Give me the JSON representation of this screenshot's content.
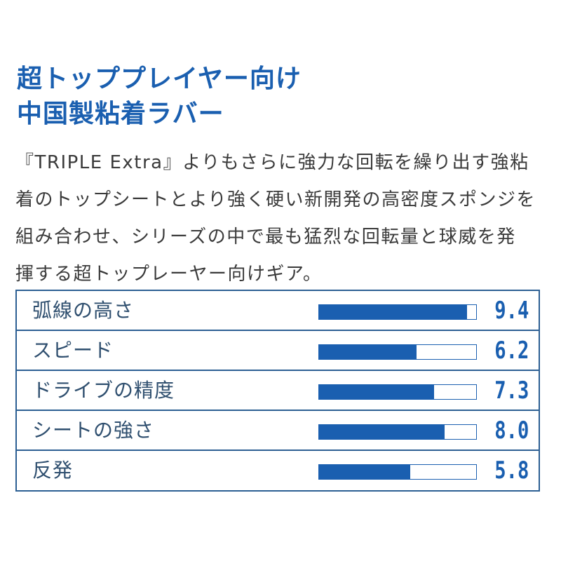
{
  "heading": {
    "line1": "超トッププレイヤー向け",
    "line2": "中国製粘着ラバー"
  },
  "description": {
    "lines": [
      "『TRIPLE Extra』よりもさらに強力な回転を繰り出す強粘",
      "着のトップシートとより強く硬い新開発の高密度スポンジを",
      "組み合わせ、シリーズの中で最も猛烈な回転量と球威を発",
      "揮する超トップレーヤー向けギア。"
    ]
  },
  "colors": {
    "accent": "#1a5fb0",
    "border": "#2c5f93",
    "text": "#3a3a3a"
  },
  "chart_data": {
    "type": "bar",
    "orientation": "horizontal",
    "categories": [
      "弧線の高さ",
      "スピード",
      "ドライブの精度",
      "シートの強さ",
      "反発"
    ],
    "values": [
      9.4,
      6.2,
      7.3,
      8.0,
      5.8
    ],
    "value_labels": [
      "9.4",
      "6.2",
      "7.3",
      "8.0",
      "5.8"
    ],
    "xlim": [
      0,
      10
    ],
    "title": "",
    "xlabel": "",
    "ylabel": ""
  }
}
